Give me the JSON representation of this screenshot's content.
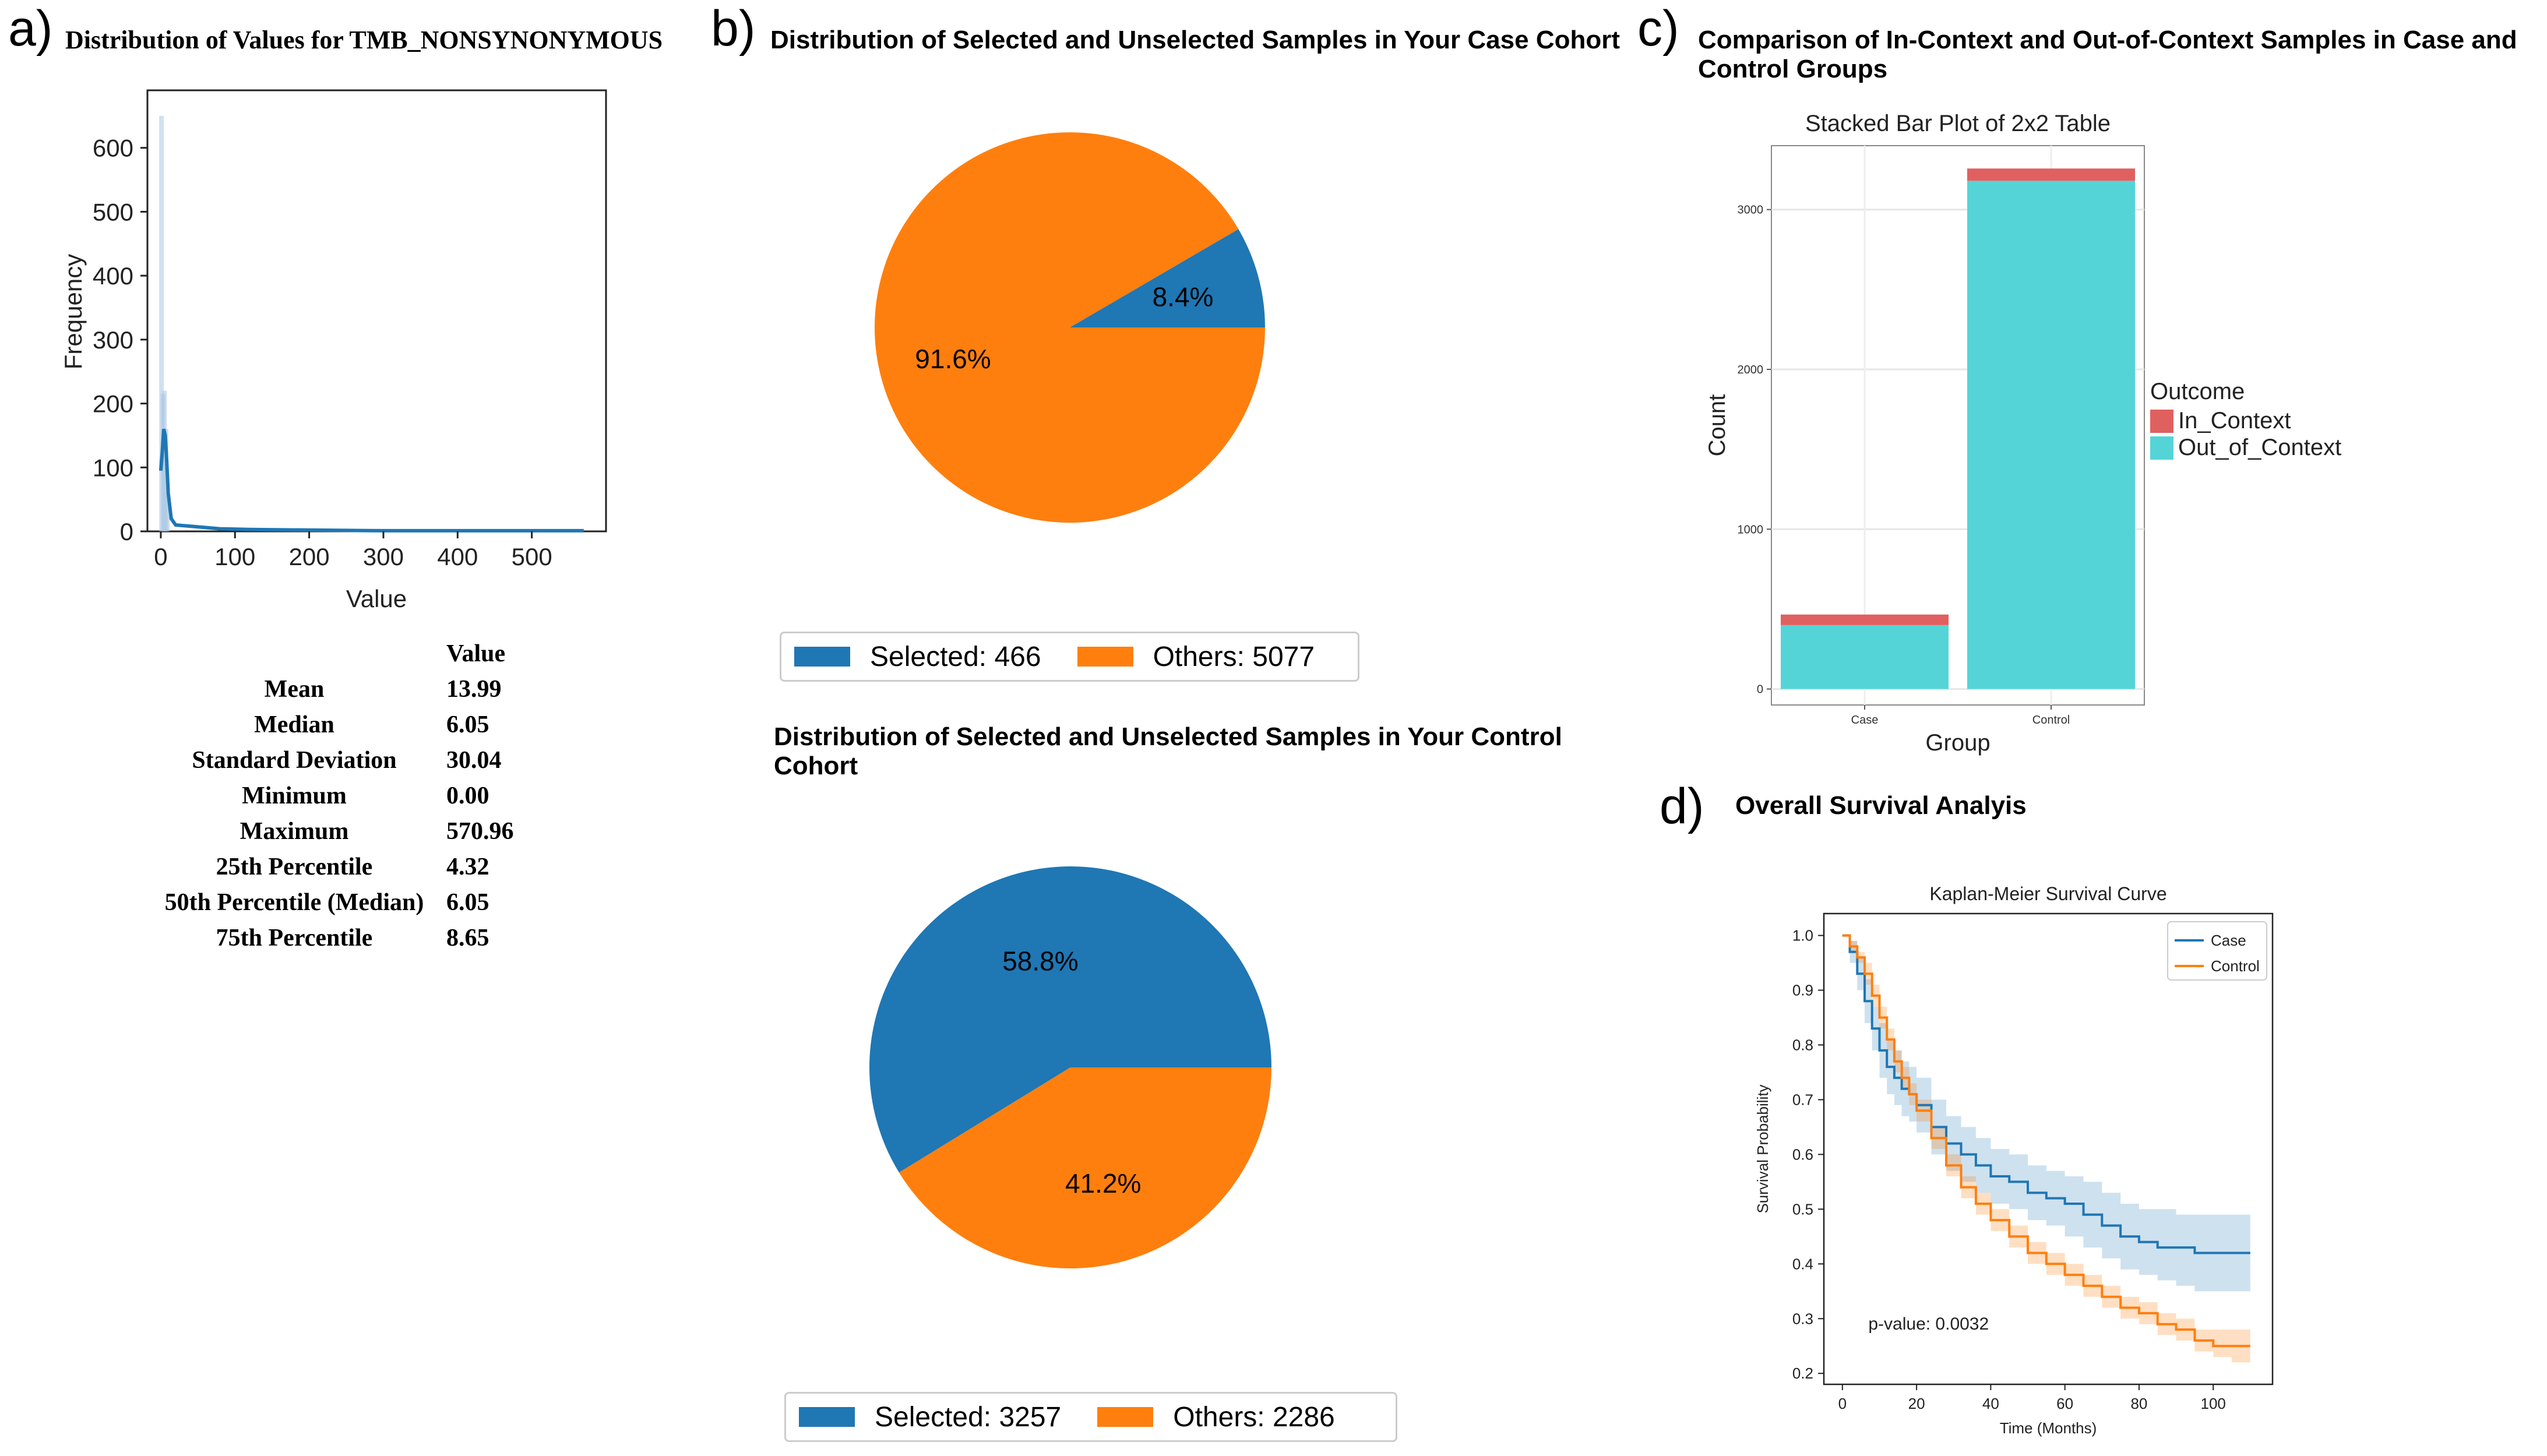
{
  "panels": {
    "a": {
      "letter": "a)",
      "title": "Distribution of Values for TMB_NONSYNONYMOUS",
      "stats_header": "Value",
      "stats": [
        {
          "label": "Mean",
          "value": "13.99"
        },
        {
          "label": "Median",
          "value": "6.05"
        },
        {
          "label": "Standard Deviation",
          "value": "30.04"
        },
        {
          "label": "Minimum",
          "value": "0.00"
        },
        {
          "label": "Maximum",
          "value": "570.96"
        },
        {
          "label": "25th Percentile",
          "value": "4.32"
        },
        {
          "label": "50th Percentile (Median)",
          "value": "6.05"
        },
        {
          "label": "75th Percentile",
          "value": "8.65"
        }
      ]
    },
    "b": {
      "letter": "b)",
      "title_case": "Distribution of Selected and Unselected Samples in Your Case Cohort",
      "title_control_line1": "Distribution of Selected and Unselected Samples in Your Control",
      "title_control_line2": "Cohort",
      "legend_case": {
        "selected": "Selected: 466",
        "others": "Others: 5077"
      },
      "legend_control": {
        "selected": "Selected: 3257",
        "others": "Others: 2286"
      }
    },
    "c": {
      "letter": "c)",
      "title_line1": "Comparison of In-Context and Out-of-Context Samples in Case and",
      "title_line2": "Control Groups"
    },
    "d": {
      "letter": "d)",
      "title": "Overall Survival Analyis"
    }
  },
  "colors": {
    "blue": "#1f77b4",
    "orange": "#ff7f0e",
    "in_context": "#e06060",
    "out_of_context": "#55d4d8"
  },
  "chart_data": [
    {
      "id": "histogram",
      "type": "area",
      "title": "",
      "xlabel": "Value",
      "ylabel": "Frequency",
      "xlim": [
        -18,
        600
      ],
      "ylim": [
        0,
        690
      ],
      "xticks": [
        0,
        100,
        200,
        300,
        400,
        500
      ],
      "yticks": [
        0,
        100,
        200,
        300,
        400,
        500,
        600
      ],
      "kde": {
        "x": [
          0,
          2,
          4,
          6,
          8,
          10,
          14,
          20,
          30,
          50,
          80,
          120,
          200,
          300,
          400,
          500,
          570
        ],
        "y": [
          95,
          125,
          160,
          150,
          110,
          60,
          20,
          10,
          9,
          7,
          4,
          3,
          2,
          1,
          1,
          1,
          1
        ]
      },
      "hist_bars": {
        "x": [
          1,
          3,
          5,
          7,
          9
        ],
        "y": [
          650,
          215,
          220,
          160,
          60
        ]
      }
    },
    {
      "id": "pie_case",
      "type": "pie",
      "labels": [
        "Selected",
        "Others"
      ],
      "values": [
        466,
        5077
      ],
      "percent_labels": [
        "8.4%",
        "91.6%"
      ]
    },
    {
      "id": "pie_control",
      "type": "pie",
      "labels": [
        "Selected",
        "Others"
      ],
      "values": [
        3257,
        2286
      ],
      "percent_labels": [
        "58.8%",
        "41.2%"
      ]
    },
    {
      "id": "stacked_bar",
      "type": "bar",
      "title": "Stacked Bar Plot of 2x2 Table",
      "xlabel": "Group",
      "ylabel": "Count",
      "categories": [
        "Case",
        "Control"
      ],
      "ylim": [
        -100,
        3400
      ],
      "yticks": [
        0,
        1000,
        2000,
        3000
      ],
      "series": [
        {
          "name": "Out_of_Context",
          "values": [
            400,
            3180
          ]
        },
        {
          "name": "In_Context",
          "values": [
            66,
            77
          ]
        }
      ],
      "legend_title": "Outcome",
      "legend": [
        "In_Context",
        "Out_of_Context"
      ]
    },
    {
      "id": "km",
      "type": "line",
      "title": "Kaplan-Meier Survival Curve",
      "xlabel": "Time (Months)",
      "ylabel": "Survival Probability",
      "xlim": [
        -5,
        116
      ],
      "ylim": [
        0.18,
        1.04
      ],
      "xticks": [
        0,
        20,
        40,
        60,
        80,
        100
      ],
      "yticks": [
        0.2,
        0.3,
        0.4,
        0.5,
        0.6,
        0.7,
        0.8,
        0.9,
        1.0
      ],
      "annotation": "p-value: 0.0032",
      "series": [
        {
          "name": "Case",
          "x": [
            0,
            2,
            4,
            6,
            8,
            10,
            12,
            14,
            16,
            18,
            20,
            24,
            28,
            32,
            36,
            40,
            45,
            50,
            55,
            60,
            65,
            70,
            75,
            80,
            85,
            90,
            95,
            100,
            105,
            110
          ],
          "y": [
            1.0,
            0.97,
            0.93,
            0.88,
            0.83,
            0.79,
            0.76,
            0.74,
            0.72,
            0.71,
            0.69,
            0.65,
            0.62,
            0.6,
            0.58,
            0.56,
            0.55,
            0.53,
            0.52,
            0.51,
            0.49,
            0.47,
            0.45,
            0.44,
            0.43,
            0.43,
            0.42,
            0.42,
            0.42,
            0.42
          ],
          "ci_low": [
            1.0,
            0.95,
            0.9,
            0.84,
            0.79,
            0.74,
            0.71,
            0.69,
            0.67,
            0.66,
            0.64,
            0.6,
            0.57,
            0.55,
            0.53,
            0.51,
            0.5,
            0.48,
            0.47,
            0.45,
            0.43,
            0.41,
            0.39,
            0.38,
            0.37,
            0.36,
            0.35,
            0.35,
            0.35,
            0.35
          ],
          "ci_high": [
            1.0,
            0.99,
            0.96,
            0.92,
            0.87,
            0.84,
            0.81,
            0.79,
            0.77,
            0.76,
            0.74,
            0.7,
            0.67,
            0.65,
            0.63,
            0.61,
            0.6,
            0.58,
            0.57,
            0.56,
            0.55,
            0.53,
            0.51,
            0.5,
            0.5,
            0.49,
            0.49,
            0.49,
            0.49,
            0.49
          ]
        },
        {
          "name": "Control",
          "x": [
            0,
            2,
            4,
            6,
            8,
            10,
            12,
            14,
            16,
            18,
            20,
            24,
            28,
            32,
            36,
            40,
            45,
            50,
            55,
            60,
            65,
            70,
            75,
            80,
            85,
            90,
            95,
            100,
            105,
            110
          ],
          "y": [
            1.0,
            0.98,
            0.96,
            0.93,
            0.89,
            0.85,
            0.81,
            0.77,
            0.74,
            0.71,
            0.68,
            0.63,
            0.58,
            0.54,
            0.51,
            0.48,
            0.45,
            0.42,
            0.4,
            0.38,
            0.36,
            0.34,
            0.32,
            0.31,
            0.29,
            0.28,
            0.26,
            0.25,
            0.25,
            0.25
          ],
          "ci_low": [
            1.0,
            0.97,
            0.95,
            0.91,
            0.87,
            0.83,
            0.79,
            0.75,
            0.72,
            0.69,
            0.66,
            0.61,
            0.56,
            0.52,
            0.49,
            0.46,
            0.43,
            0.4,
            0.38,
            0.36,
            0.34,
            0.32,
            0.3,
            0.29,
            0.27,
            0.26,
            0.24,
            0.23,
            0.22,
            0.22
          ],
          "ci_high": [
            1.0,
            0.99,
            0.97,
            0.95,
            0.91,
            0.87,
            0.83,
            0.79,
            0.76,
            0.73,
            0.7,
            0.65,
            0.6,
            0.56,
            0.53,
            0.5,
            0.47,
            0.44,
            0.42,
            0.4,
            0.38,
            0.36,
            0.34,
            0.33,
            0.31,
            0.3,
            0.28,
            0.28,
            0.28,
            0.28
          ]
        }
      ]
    }
  ]
}
